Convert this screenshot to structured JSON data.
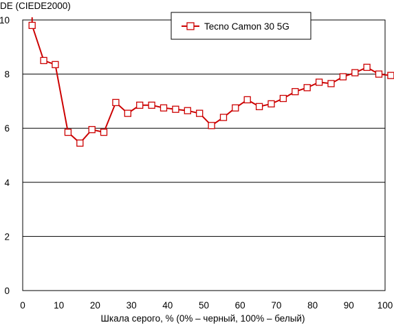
{
  "chart_data": {
    "type": "line",
    "ylabel": "DE (CIEDE2000)",
    "xlabel": "Шкала серого, % (0% – черный, 100% – белый)",
    "xlim": [
      0,
      100
    ],
    "ylim": [
      0,
      10
    ],
    "xticks": [
      0,
      10,
      20,
      30,
      40,
      50,
      60,
      70,
      80,
      90,
      100
    ],
    "yticks": [
      0,
      2,
      4,
      6,
      8,
      10
    ],
    "xtick_labels": [
      "0",
      "10",
      "20",
      "30",
      "40",
      "50",
      "60",
      "70",
      "80",
      "90",
      "100"
    ],
    "ytick_labels": [
      "0",
      "2",
      "4",
      "6",
      "8",
      "10"
    ],
    "grid": "horizontal",
    "legend_position": "top-right",
    "series": [
      {
        "name": "Tecno Camon 30 5G",
        "color": "#cc0000",
        "marker": "open-square",
        "lead_in": {
          "x": 2.6,
          "y": 10.1
        },
        "x": [
          2.6,
          5.8,
          9.0,
          12.5,
          15.8,
          19.1,
          22.4,
          25.7,
          29.0,
          32.3,
          35.6,
          38.9,
          42.2,
          45.5,
          48.8,
          52.1,
          55.4,
          58.7,
          62.0,
          65.3,
          68.6,
          71.9,
          75.2,
          78.5,
          81.8,
          85.1,
          88.4,
          91.7,
          95.0,
          98.3,
          101.6
        ],
        "y": [
          9.8,
          8.5,
          8.35,
          5.85,
          5.45,
          5.95,
          5.85,
          6.95,
          6.55,
          6.85,
          6.85,
          6.75,
          6.7,
          6.65,
          6.55,
          6.1,
          6.4,
          6.75,
          7.05,
          6.8,
          6.9,
          7.1,
          7.35,
          7.5,
          7.7,
          7.65,
          7.9,
          8.05,
          8.25,
          8.0,
          7.95
        ]
      }
    ]
  }
}
